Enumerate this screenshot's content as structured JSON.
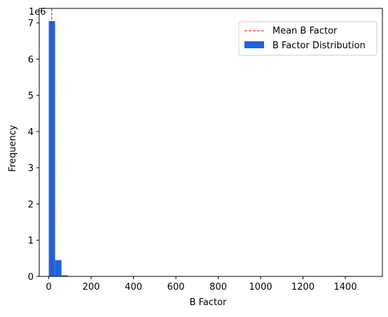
{
  "chart_data": {
    "type": "bar",
    "xlabel": "B Factor",
    "ylabel": "Frequency",
    "y_offset_label": "1e6",
    "y_scale": 1000000,
    "xlim": [
      -45,
      1575
    ],
    "ylim": [
      0,
      7400000
    ],
    "x_ticks": [
      0,
      200,
      400,
      600,
      800,
      1000,
      1200,
      1400
    ],
    "y_ticks": [
      0,
      1,
      2,
      3,
      4,
      5,
      6,
      7
    ],
    "grid": false,
    "legend_position": "upper right",
    "bins": [
      {
        "x0": 0,
        "x1": 30,
        "value": 7050000
      },
      {
        "x0": 30,
        "x1": 60,
        "value": 450000
      },
      {
        "x0": 60,
        "x1": 90,
        "value": 30000
      },
      {
        "x0": 90,
        "x1": 120,
        "value": 4000
      },
      {
        "x0": 120,
        "x1": 150,
        "value": 1500
      },
      {
        "x0": 150,
        "x1": 180,
        "value": 800
      }
    ],
    "mean_value": 14,
    "legend": [
      {
        "label": "Mean B Factor",
        "kind": "line",
        "color": "#ff0000"
      },
      {
        "label": "B Factor Distribution",
        "kind": "patch",
        "color": "#1f66e0"
      }
    ],
    "bar_color": "#1f66e0",
    "mean_color": "#ff0000"
  }
}
